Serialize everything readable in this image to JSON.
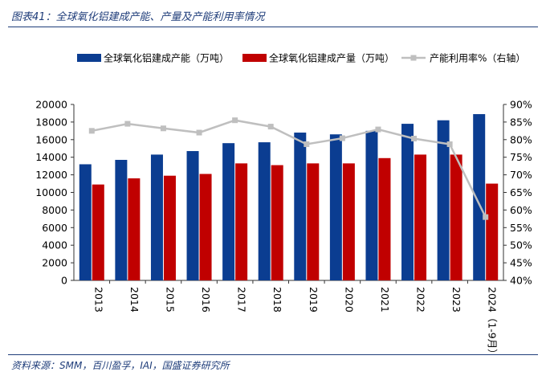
{
  "figure": {
    "title": "图表41：全球氧化铝建成产能、产量及产能利用率情况",
    "source": "资料来源：SMM，百川盈孚，IAI，国盛证券研究所"
  },
  "chart_data": {
    "type": "bar",
    "categories": [
      "2013",
      "2014",
      "2015",
      "2016",
      "2017",
      "2018",
      "2019",
      "2020",
      "2021",
      "2022",
      "2023",
      "2024（1-9月）"
    ],
    "series": [
      {
        "name": "全球氧化铝建成产能（万吨）",
        "type": "bar",
        "axis": "left",
        "color": "#0b3d91",
        "values": [
          13200,
          13700,
          14300,
          14700,
          15600,
          15700,
          16800,
          16600,
          17000,
          17800,
          18200,
          18900
        ]
      },
      {
        "name": "全球氧化铝建成产量（万吨）",
        "type": "bar",
        "axis": "left",
        "color": "#c00000",
        "values": [
          10900,
          11600,
          11900,
          12100,
          13300,
          13100,
          13300,
          13300,
          13900,
          14300,
          14300,
          11000
        ]
      },
      {
        "name": "产能利用率%（右轴）",
        "type": "line",
        "axis": "right",
        "color": "#bfbfbf",
        "values": [
          82.5,
          84.5,
          83.2,
          82.0,
          85.5,
          83.7,
          78.7,
          80.4,
          82.9,
          80.3,
          78.7,
          58.0
        ]
      }
    ],
    "y_left": {
      "min": 0,
      "max": 20000,
      "ticks": [
        "0",
        "2000",
        "4000",
        "6000",
        "8000",
        "10000",
        "12000",
        "14000",
        "16000",
        "18000",
        "20000"
      ]
    },
    "y_right": {
      "min": 40,
      "max": 90,
      "ticks": [
        "40%",
        "45%",
        "50%",
        "55%",
        "60%",
        "65%",
        "70%",
        "75%",
        "80%",
        "85%",
        "90%"
      ]
    },
    "legend": "top",
    "grid": false
  }
}
